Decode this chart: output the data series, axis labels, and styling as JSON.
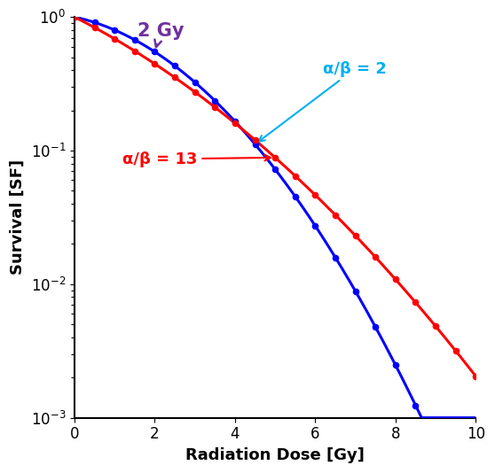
{
  "alpha_beta_blue": 2,
  "alpha_beta_red": 13,
  "x_max": 10,
  "x_min": 0,
  "y_min": 0.001,
  "y_max": 1.0,
  "xlabel": "Radiation Dose [Gy]",
  "ylabel": "Survival [SF]",
  "blue_color": "#0000ff",
  "red_color": "#ff0000",
  "purple_color": "#7030a0",
  "cyan_color": "#00b0f0",
  "annotation_2gy_text": "2 Gy",
  "annotation_blue_text": "α/β = 2",
  "annotation_red_text": "α/β = 13",
  "alpha_blue": 0.15,
  "alpha_red": 0.35,
  "marker_interval": 0.5,
  "linewidth": 2.2,
  "markersize": 4.5,
  "tick_label_fontsize": 12,
  "axis_label_fontsize": 13,
  "annotation_fontsize": 13,
  "gy_annotation_fontsize": 15
}
